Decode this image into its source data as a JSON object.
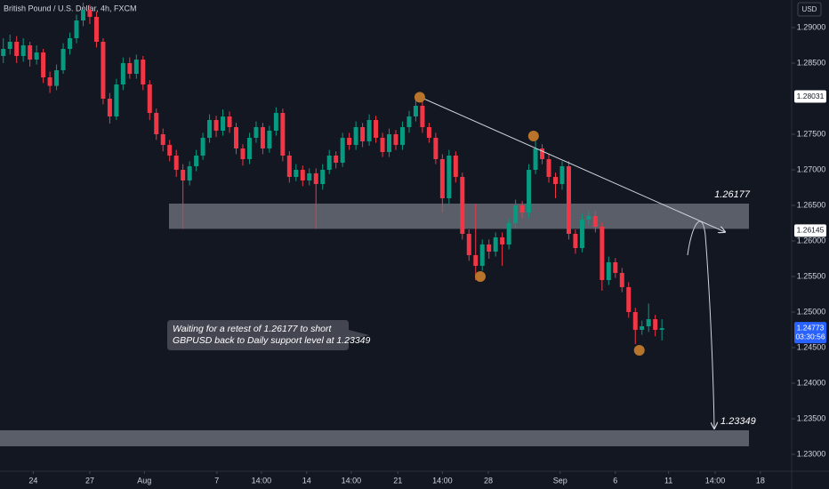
{
  "chart_data": {
    "type": "candlestick",
    "title": "British Pound / U.S. Dollar, 4h, FXCM",
    "currency": "USD",
    "up_color": "#089981",
    "down_color": "#f23645",
    "xlim": [
      -0.5,
      118.5
    ],
    "ylim": [
      1.227625,
      1.293875
    ],
    "xticks": [
      {
        "value": 4.5,
        "label": "24"
      },
      {
        "value": 13,
        "label": "27"
      },
      {
        "value": 21.2,
        "label": "Aug"
      },
      {
        "value": 32.1,
        "label": "7"
      },
      {
        "value": 38.8,
        "label": "14:00"
      },
      {
        "value": 45.6,
        "label": "14"
      },
      {
        "value": 52.3,
        "label": "14:00"
      },
      {
        "value": 59.3,
        "label": "21"
      },
      {
        "value": 66,
        "label": "14:00"
      },
      {
        "value": 72.9,
        "label": "28"
      },
      {
        "value": 83.7,
        "label": "Sep"
      },
      {
        "value": 92,
        "label": "6"
      },
      {
        "value": 100,
        "label": "11"
      },
      {
        "value": 107,
        "label": "14:00"
      },
      {
        "value": 113.8,
        "label": "18"
      }
    ],
    "yticks": [
      {
        "value": 1.29,
        "label": "1.29000"
      },
      {
        "value": 1.285,
        "label": "1.28500"
      },
      {
        "value": 1.275,
        "label": "1.27500"
      },
      {
        "value": 1.27,
        "label": "1.27000"
      },
      {
        "value": 1.265,
        "label": "1.26500"
      },
      {
        "value": 1.26,
        "label": "1.26000"
      },
      {
        "value": 1.255,
        "label": "1.25500"
      },
      {
        "value": 1.25,
        "label": "1.25000"
      },
      {
        "value": 1.245,
        "label": "1.24500"
      },
      {
        "value": 1.24,
        "label": "1.24000"
      },
      {
        "value": 1.235,
        "label": "1.23500"
      },
      {
        "value": 1.23,
        "label": "1.23000"
      }
    ],
    "grid": false,
    "ohlc": [
      [
        1.286,
        1.2885,
        1.285,
        1.287
      ],
      [
        1.287,
        1.289,
        1.2862,
        1.288
      ],
      [
        1.288,
        1.2888,
        1.285,
        1.286
      ],
      [
        1.286,
        1.2885,
        1.2852,
        1.2875
      ],
      [
        1.2875,
        1.288,
        1.2845,
        1.2855
      ],
      [
        1.2855,
        1.2875,
        1.2848,
        1.2865
      ],
      [
        1.2865,
        1.287,
        1.2822,
        1.283
      ],
      [
        1.283,
        1.2838,
        1.2808,
        1.2818
      ],
      [
        1.2818,
        1.2848,
        1.2812,
        1.284
      ],
      [
        1.284,
        1.2878,
        1.2835,
        1.287
      ],
      [
        1.287,
        1.2893,
        1.2862,
        1.2885
      ],
      [
        1.2885,
        1.2918,
        1.2878,
        1.291
      ],
      [
        1.291,
        1.2935,
        1.2902,
        1.2925
      ],
      [
        1.2925,
        1.2932,
        1.2905,
        1.2915
      ],
      [
        1.2915,
        1.2922,
        1.2872,
        1.288
      ],
      [
        1.288,
        1.2885,
        1.2792,
        1.28
      ],
      [
        1.28,
        1.2808,
        1.2765,
        1.2775
      ],
      [
        1.2775,
        1.2828,
        1.277,
        1.282
      ],
      [
        1.282,
        1.2858,
        1.2812,
        1.285
      ],
      [
        1.285,
        1.2858,
        1.2828,
        1.2835
      ],
      [
        1.2835,
        1.2862,
        1.2828,
        1.2855
      ],
      [
        1.2855,
        1.286,
        1.2812,
        1.282
      ],
      [
        1.282,
        1.2826,
        1.277,
        1.278
      ],
      [
        1.278,
        1.2786,
        1.2742,
        1.275
      ],
      [
        1.275,
        1.2758,
        1.2726,
        1.2735
      ],
      [
        1.2735,
        1.2742,
        1.2712,
        1.272
      ],
      [
        1.272,
        1.2728,
        1.269,
        1.27
      ],
      [
        1.27,
        1.2708,
        1.2617,
        1.2685
      ],
      [
        1.2685,
        1.2712,
        1.2678,
        1.2705
      ],
      [
        1.2705,
        1.2728,
        1.2698,
        1.272
      ],
      [
        1.272,
        1.2752,
        1.2714,
        1.2745
      ],
      [
        1.2745,
        1.2778,
        1.2738,
        1.277
      ],
      [
        1.277,
        1.2776,
        1.2746,
        1.2755
      ],
      [
        1.2755,
        1.2785,
        1.2748,
        1.2775
      ],
      [
        1.2775,
        1.2782,
        1.2752,
        1.276
      ],
      [
        1.276,
        1.2766,
        1.2722,
        1.273
      ],
      [
        1.273,
        1.2736,
        1.2706,
        1.2715
      ],
      [
        1.2715,
        1.2752,
        1.2708,
        1.2745
      ],
      [
        1.2745,
        1.2768,
        1.2738,
        1.276
      ],
      [
        1.276,
        1.2766,
        1.2722,
        1.273
      ],
      [
        1.273,
        1.2762,
        1.2724,
        1.2755
      ],
      [
        1.2755,
        1.2788,
        1.2748,
        1.278
      ],
      [
        1.278,
        1.2786,
        1.2712,
        1.272
      ],
      [
        1.272,
        1.2726,
        1.2682,
        1.269
      ],
      [
        1.269,
        1.2708,
        1.2684,
        1.27
      ],
      [
        1.27,
        1.2706,
        1.2677,
        1.2685
      ],
      [
        1.2685,
        1.2702,
        1.2678,
        1.2695
      ],
      [
        1.2695,
        1.2702,
        1.2617,
        1.268
      ],
      [
        1.268,
        1.2708,
        1.2672,
        1.27
      ],
      [
        1.27,
        1.2728,
        1.2694,
        1.272
      ],
      [
        1.272,
        1.2726,
        1.2702,
        1.271
      ],
      [
        1.271,
        1.2752,
        1.2704,
        1.2745
      ],
      [
        1.2745,
        1.2752,
        1.2728,
        1.2735
      ],
      [
        1.2735,
        1.2768,
        1.2728,
        1.276
      ],
      [
        1.276,
        1.2766,
        1.2732,
        1.274
      ],
      [
        1.274,
        1.2778,
        1.2734,
        1.277
      ],
      [
        1.277,
        1.2776,
        1.2738,
        1.2745
      ],
      [
        1.2745,
        1.2752,
        1.2718,
        1.2725
      ],
      [
        1.2725,
        1.2758,
        1.2718,
        1.275
      ],
      [
        1.275,
        1.2756,
        1.2728,
        1.2735
      ],
      [
        1.2735,
        1.2768,
        1.2728,
        1.276
      ],
      [
        1.276,
        1.2783,
        1.2752,
        1.2775
      ],
      [
        1.2775,
        1.28,
        1.2768,
        1.279
      ],
      [
        1.279,
        1.2796,
        1.2752,
        1.276
      ],
      [
        1.276,
        1.2766,
        1.2738,
        1.2745
      ],
      [
        1.2745,
        1.2752,
        1.2708,
        1.2715
      ],
      [
        1.2715,
        1.2722,
        1.264,
        1.266
      ],
      [
        1.266,
        1.2728,
        1.2652,
        1.272
      ],
      [
        1.272,
        1.2726,
        1.2682,
        1.269
      ],
      [
        1.269,
        1.2696,
        1.2602,
        1.261
      ],
      [
        1.261,
        1.2616,
        1.2572,
        1.258
      ],
      [
        1.258,
        1.2652,
        1.2545,
        1.2565
      ],
      [
        1.2565,
        1.2602,
        1.2558,
        1.2595
      ],
      [
        1.2595,
        1.2602,
        1.2575,
        1.2585
      ],
      [
        1.2585,
        1.2612,
        1.2578,
        1.2605
      ],
      [
        1.2605,
        1.2612,
        1.2565,
        1.2595
      ],
      [
        1.2595,
        1.2632,
        1.2588,
        1.2625
      ],
      [
        1.2625,
        1.2658,
        1.2618,
        1.265
      ],
      [
        1.265,
        1.2656,
        1.2632,
        1.264
      ],
      [
        1.264,
        1.2708,
        1.2632,
        1.27
      ],
      [
        1.27,
        1.2745,
        1.2694,
        1.273
      ],
      [
        1.273,
        1.2736,
        1.2708,
        1.2715
      ],
      [
        1.2715,
        1.2722,
        1.2682,
        1.269
      ],
      [
        1.269,
        1.2696,
        1.266,
        1.268
      ],
      [
        1.268,
        1.2712,
        1.2672,
        1.2705
      ],
      [
        1.2705,
        1.2712,
        1.2602,
        1.261
      ],
      [
        1.261,
        1.2616,
        1.2582,
        1.259
      ],
      [
        1.259,
        1.2638,
        1.2584,
        1.263
      ],
      [
        1.263,
        1.2642,
        1.2622,
        1.2635
      ],
      [
        1.2635,
        1.2642,
        1.2612,
        1.262
      ],
      [
        1.262,
        1.2626,
        1.253,
        1.2545
      ],
      [
        1.2545,
        1.2578,
        1.2538,
        1.257
      ],
      [
        1.257,
        1.2576,
        1.2548,
        1.2555
      ],
      [
        1.2555,
        1.2562,
        1.2528,
        1.2535
      ],
      [
        1.2535,
        1.2542,
        1.2492,
        1.25
      ],
      [
        1.25,
        1.2506,
        1.2455,
        1.2475
      ],
      [
        1.2475,
        1.2488,
        1.2468,
        1.248
      ],
      [
        1.248,
        1.2512,
        1.2472,
        1.249
      ],
      [
        1.249,
        1.2496,
        1.2466,
        1.2475
      ],
      [
        1.2475,
        1.249,
        1.246,
        1.24773
      ]
    ],
    "zones": [
      {
        "low": 1.2617,
        "high": 1.26525,
        "label": "1.26177"
      },
      {
        "low": 1.23113,
        "high": 1.23338,
        "label": "1.23349"
      }
    ],
    "trendline": {
      "x": [
        62.6,
        108.5
      ],
      "y": [
        1.28025,
        1.26125
      ]
    },
    "markers": {
      "x": [
        62.6,
        79.7,
        71.7,
        95.6
      ],
      "y": [
        1.2802,
        1.27475,
        1.255,
        1.24463
      ]
    },
    "annotation": [
      "Waiting for a retest of 1.26177 to short",
      "GBPUSD back to Daily support level at 1.23349"
    ],
    "price_labels": [
      {
        "value": 1.28031,
        "label": "1.28031"
      },
      {
        "value": 1.26145,
        "label": "1.26145"
      },
      {
        "value": 1.24773,
        "label": "1.24773"
      }
    ],
    "countdown": "03:30:56"
  }
}
